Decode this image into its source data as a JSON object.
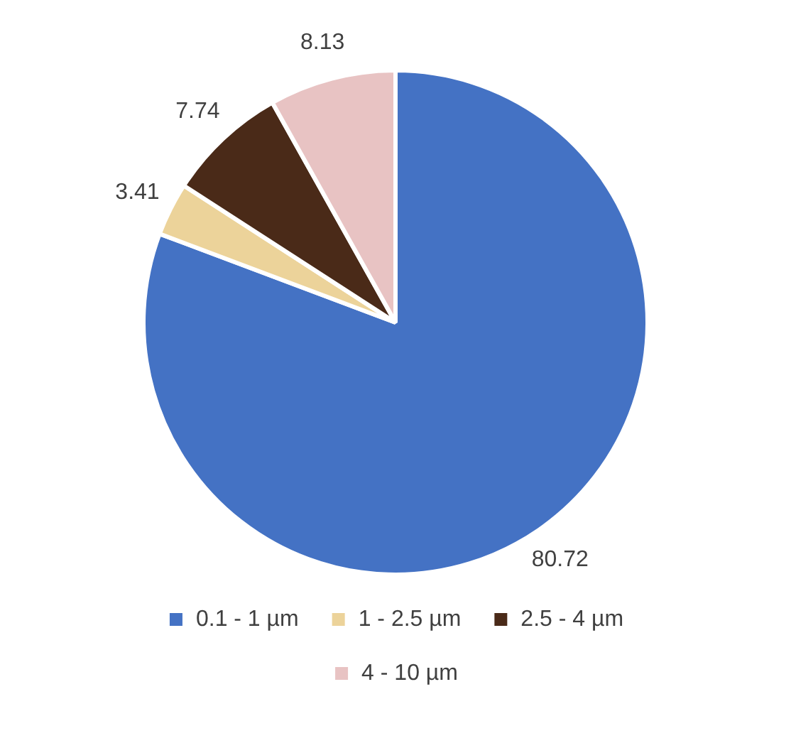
{
  "chart_data": {
    "type": "pie",
    "categories": [
      "0.1 - 1 µm",
      "1 - 2.5 µm",
      "2.5 - 4 µm",
      "4 - 10 µm"
    ],
    "values": [
      80.72,
      3.41,
      7.74,
      8.13
    ],
    "colors": [
      "#4472c4",
      "#ecd39a",
      "#4a2a18",
      "#e8c3c3"
    ],
    "data_labels": true,
    "legend": "bottom"
  }
}
